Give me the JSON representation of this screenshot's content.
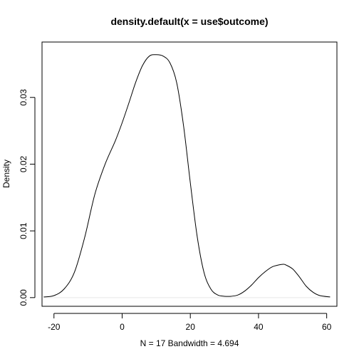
{
  "chart_data": {
    "type": "line",
    "title": "density.default(x = use$outcome)",
    "xlabel": "N = 17   Bandwidth = 4.694",
    "ylabel": "Density",
    "xlim": [
      -23.5,
      63
    ],
    "ylim": [
      -0.0013,
      0.0383
    ],
    "x_ticks": [
      -20,
      0,
      20,
      40,
      60
    ],
    "y_ticks": [
      0.0,
      0.01,
      0.02,
      0.03
    ],
    "x_tick_labels": [
      "-20",
      "0",
      "20",
      "40",
      "60"
    ],
    "y_tick_labels": [
      "0.00",
      "0.01",
      "0.02",
      "0.03"
    ],
    "grid": false,
    "legend": "none",
    "colors": {
      "line": "#000000",
      "frame": "#000000",
      "baseline": "#e6e6e6"
    },
    "series": [
      {
        "x": [
          -23,
          -20,
          -17,
          -14,
          -11,
          -8,
          -5,
          -2,
          0,
          2,
          4,
          6,
          8,
          10,
          12,
          14,
          16,
          18,
          20,
          22,
          24,
          26,
          28,
          30,
          32,
          34,
          36,
          38,
          40,
          42,
          44,
          46,
          47.3,
          48,
          50,
          52,
          54,
          56,
          58,
          61
        ],
        "y": [
          0.0001,
          0.0003,
          0.0013,
          0.0038,
          0.009,
          0.0155,
          0.02,
          0.0235,
          0.0262,
          0.0292,
          0.0323,
          0.0348,
          0.0362,
          0.0364,
          0.0362,
          0.0352,
          0.0322,
          0.0258,
          0.0172,
          0.0092,
          0.0038,
          0.0013,
          0.0004,
          0.0002,
          0.0002,
          0.0004,
          0.001,
          0.0019,
          0.003,
          0.0039,
          0.0046,
          0.0049,
          0.005,
          0.0049,
          0.0043,
          0.0031,
          0.0017,
          0.0008,
          0.0003,
          0.0001
        ]
      }
    ]
  }
}
